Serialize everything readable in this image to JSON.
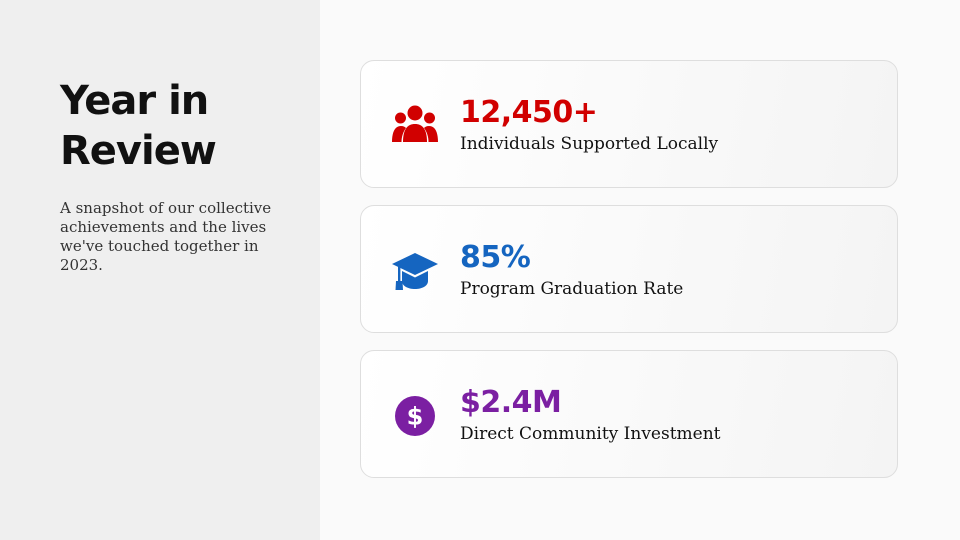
{
  "header": {
    "title": "Year in Review",
    "subtitle": "A snapshot of our collective achievements and the lives we've touched together in 2023."
  },
  "stats": [
    {
      "value": "12,450+",
      "label": "Individuals Supported Locally",
      "icon": "users-icon",
      "color": "#d10000"
    },
    {
      "value": "85%",
      "label": "Program Graduation Rate",
      "icon": "graduation-cap-icon",
      "color": "#1565c0"
    },
    {
      "value": "$2.4M",
      "label": "Direct Community Investment",
      "icon": "dollar-circle-icon",
      "color": "#7b1fa2"
    }
  ]
}
